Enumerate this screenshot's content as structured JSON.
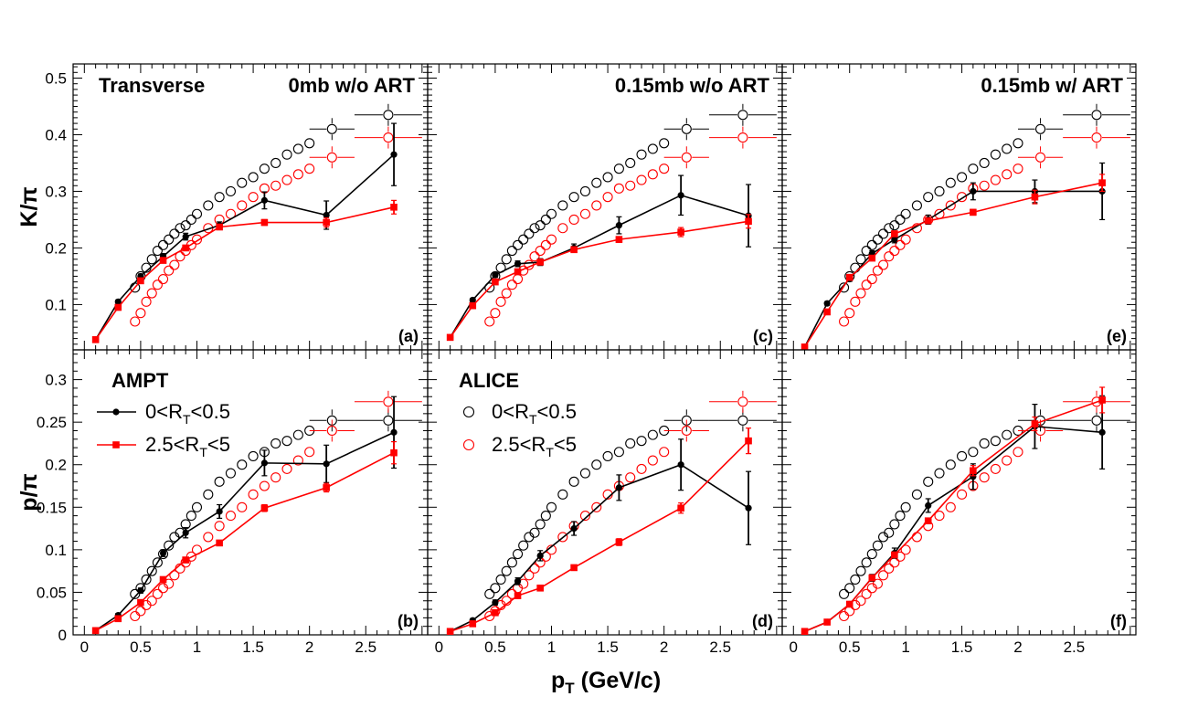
{
  "chart_data": {
    "type": "scatter",
    "layout": "3 columns x 2 rows of panels sharing axes",
    "xlabel": "p",
    "xlabel_sub": "T",
    "xlabel_unit": " (GeV/c)",
    "x_ticks": [
      "0",
      "0.5",
      "1",
      "1.5",
      "2",
      "2.5"
    ],
    "xlim": [
      -0.1,
      3.05
    ],
    "rows": [
      {
        "ylabel": "K/π",
        "ylim": [
          0.02,
          0.525
        ],
        "y_ticks": [
          "0.1",
          "0.2",
          "0.3",
          "0.4",
          "0.5"
        ]
      },
      {
        "ylabel": "p/π",
        "ylim": [
          0.0,
          0.335
        ],
        "y_ticks": [
          "0",
          "0.05",
          "0.1",
          "0.15",
          "0.2",
          "0.25",
          "0.3"
        ]
      }
    ],
    "alice_x": [
      0.45,
      0.5,
      0.55,
      0.6,
      0.65,
      0.7,
      0.75,
      0.8,
      0.85,
      0.9,
      0.95,
      1.0,
      1.1,
      1.2,
      1.3,
      1.4,
      1.5,
      1.6,
      1.7,
      1.8,
      1.9,
      2.0,
      2.2,
      2.7
    ],
    "alice_xerr_hi": [
      0.0,
      0.0,
      0.0,
      0.0,
      0.0,
      0.0,
      0.0,
      0.0,
      0.0,
      0.0,
      0.0,
      0.0,
      0.0,
      0.0,
      0.0,
      0.0,
      0.0,
      0.0,
      0.0,
      0.0,
      0.0,
      0.0,
      0.2,
      0.3
    ],
    "alice_kpi_low": [
      0.13,
      0.15,
      0.165,
      0.18,
      0.195,
      0.205,
      0.215,
      0.225,
      0.235,
      0.24,
      0.25,
      0.26,
      0.275,
      0.29,
      0.3,
      0.315,
      0.325,
      0.34,
      0.35,
      0.365,
      0.375,
      0.385,
      0.41,
      0.435
    ],
    "alice_kpi_high": [
      0.07,
      0.085,
      0.105,
      0.12,
      0.135,
      0.145,
      0.16,
      0.17,
      0.185,
      0.195,
      0.205,
      0.215,
      0.235,
      0.25,
      0.26,
      0.275,
      0.29,
      0.305,
      0.31,
      0.32,
      0.33,
      0.34,
      0.36,
      0.395
    ],
    "alice_ppi_low": [
      0.048,
      0.055,
      0.065,
      0.075,
      0.085,
      0.095,
      0.105,
      0.115,
      0.12,
      0.13,
      0.14,
      0.15,
      0.165,
      0.18,
      0.19,
      0.2,
      0.21,
      0.215,
      0.225,
      0.228,
      0.235,
      0.24,
      0.252,
      0.252
    ],
    "alice_ppi_high": [
      0.022,
      0.028,
      0.035,
      0.04,
      0.048,
      0.055,
      0.06,
      0.07,
      0.078,
      0.085,
      0.092,
      0.1,
      0.115,
      0.128,
      0.14,
      0.15,
      0.165,
      0.175,
      0.185,
      0.195,
      0.205,
      0.215,
      0.24,
      0.274
    ],
    "ampt_x": [
      0.1,
      0.3,
      0.5,
      0.7,
      0.9,
      1.2,
      1.6,
      2.15,
      2.75
    ],
    "panels": [
      {
        "label": "(a)",
        "title": "0mb w/o ART",
        "row": 0,
        "col": 0,
        "ampt_low": [
          0.038,
          0.105,
          0.15,
          0.185,
          0.22,
          0.24,
          0.284,
          0.258,
          0.365
        ],
        "ampt_low_err": [
          0.002,
          0.003,
          0.004,
          0.005,
          0.006,
          0.006,
          0.015,
          0.025,
          0.055
        ],
        "ampt_high": [
          0.038,
          0.095,
          0.142,
          0.178,
          0.2,
          0.237,
          0.245,
          0.245,
          0.272
        ],
        "ampt_high_err": [
          0.002,
          0.003,
          0.003,
          0.004,
          0.004,
          0.004,
          0.005,
          0.008,
          0.012
        ]
      },
      {
        "label": "(c)",
        "title": "0.15mb w/o ART",
        "row": 0,
        "col": 1,
        "ampt_low": [
          0.042,
          0.108,
          0.152,
          0.172,
          0.175,
          0.2,
          0.24,
          0.293,
          0.257
        ],
        "ampt_low_err": [
          0.002,
          0.003,
          0.004,
          0.005,
          0.006,
          0.007,
          0.015,
          0.035,
          0.055
        ],
        "ampt_high": [
          0.042,
          0.098,
          0.14,
          0.158,
          0.175,
          0.197,
          0.215,
          0.228,
          0.247
        ],
        "ampt_high_err": [
          0.002,
          0.003,
          0.003,
          0.004,
          0.004,
          0.004,
          0.005,
          0.008,
          0.012
        ]
      },
      {
        "label": "(e)",
        "title": "0.15mb w/ ART",
        "row": 0,
        "col": 2,
        "ampt_low": [
          0.025,
          0.102,
          0.145,
          0.19,
          0.215,
          0.25,
          0.3,
          0.3,
          0.3
        ],
        "ampt_low_err": [
          0.002,
          0.003,
          0.004,
          0.005,
          0.006,
          0.008,
          0.015,
          0.02,
          0.05
        ],
        "ampt_high": [
          0.025,
          0.087,
          0.148,
          0.182,
          0.225,
          0.248,
          0.263,
          0.29,
          0.315
        ],
        "ampt_high_err": [
          0.002,
          0.003,
          0.003,
          0.004,
          0.004,
          0.004,
          0.005,
          0.012,
          0.015
        ]
      },
      {
        "label": "(b)",
        "title": "",
        "row": 1,
        "col": 0,
        "ampt_low": [
          0.005,
          0.023,
          0.052,
          0.096,
          0.12,
          0.145,
          0.202,
          0.201,
          0.238
        ],
        "ampt_low_err": [
          0.001,
          0.002,
          0.003,
          0.004,
          0.006,
          0.008,
          0.015,
          0.022,
          0.042
        ],
        "ampt_high": [
          0.005,
          0.019,
          0.038,
          0.065,
          0.088,
          0.108,
          0.149,
          0.173,
          0.214
        ],
        "ampt_high_err": [
          0.001,
          0.001,
          0.002,
          0.002,
          0.003,
          0.003,
          0.004,
          0.005,
          0.013
        ]
      },
      {
        "label": "(d)",
        "title": "",
        "row": 1,
        "col": 1,
        "ampt_low": [
          0.004,
          0.017,
          0.038,
          0.063,
          0.093,
          0.125,
          0.173,
          0.2,
          0.149
        ],
        "ampt_low_err": [
          0.001,
          0.002,
          0.003,
          0.004,
          0.006,
          0.008,
          0.015,
          0.03,
          0.043
        ],
        "ampt_high": [
          0.004,
          0.013,
          0.026,
          0.046,
          0.055,
          0.079,
          0.109,
          0.149,
          0.228
        ],
        "ampt_high_err": [
          0.001,
          0.001,
          0.002,
          0.002,
          0.003,
          0.003,
          0.004,
          0.006,
          0.015
        ]
      },
      {
        "label": "(f)",
        "title": "",
        "row": 1,
        "col": 2,
        "ampt_low": [
          0.004,
          0.015,
          0.036,
          0.067,
          0.096,
          0.152,
          0.186,
          0.245,
          0.238
        ],
        "ampt_low_err": [
          0.001,
          0.002,
          0.003,
          0.004,
          0.006,
          0.008,
          0.015,
          0.026,
          0.043
        ],
        "ampt_high": [
          0.004,
          0.015,
          0.036,
          0.067,
          0.094,
          0.134,
          0.193,
          0.248,
          0.276
        ],
        "ampt_high_err": [
          0.001,
          0.001,
          0.002,
          0.002,
          0.003,
          0.003,
          0.006,
          0.008,
          0.015
        ]
      }
    ],
    "colors": {
      "low_rt": "#000000",
      "high_rt": "#ff0000"
    }
  },
  "annotations": {
    "transverse": "Transverse",
    "ampt_header": "AMPT",
    "alice_header": "ALICE"
  },
  "legend": {
    "low_rt": {
      "pre": "0<R",
      "sub": "T",
      "post": "<0.5"
    },
    "high_rt": {
      "pre": "2.5<R",
      "sub": "T",
      "post": "<5"
    }
  }
}
